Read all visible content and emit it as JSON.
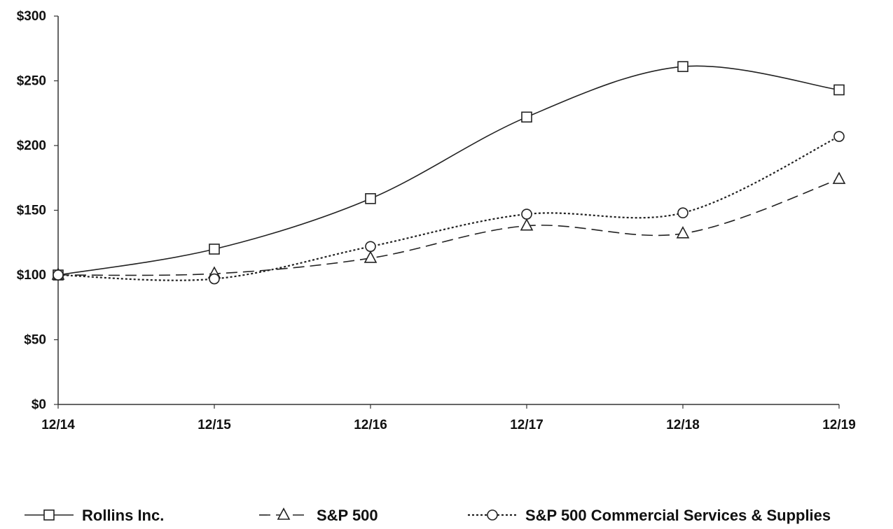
{
  "chart_data": {
    "type": "line",
    "title": "",
    "xlabel": "",
    "ylabel": "",
    "categories": [
      "12/14",
      "12/15",
      "12/16",
      "12/17",
      "12/18",
      "12/19"
    ],
    "y_ticks": [
      "$0",
      "$50",
      "$100",
      "$150",
      "$200",
      "$250",
      "$300"
    ],
    "y_tick_values": [
      0,
      50,
      100,
      150,
      200,
      250,
      300
    ],
    "ylim": [
      0,
      300
    ],
    "grid": false,
    "legend_position": "bottom",
    "series": [
      {
        "name": "Rollins Inc.",
        "marker": "square",
        "line_style": "solid",
        "values": [
          100,
          120,
          159,
          222,
          261,
          243
        ]
      },
      {
        "name": "S&P 500",
        "marker": "triangle",
        "line_style": "dashed",
        "values": [
          100,
          101,
          113,
          138,
          132,
          174
        ]
      },
      {
        "name": "S&P 500 Commercial Services & Supplies",
        "marker": "circle",
        "line_style": "dotted",
        "values": [
          100,
          97,
          122,
          147,
          148,
          207
        ]
      }
    ],
    "colors": {
      "line": "#222222",
      "axis": "#333333",
      "text": "#111111",
      "background": "#ffffff"
    }
  }
}
